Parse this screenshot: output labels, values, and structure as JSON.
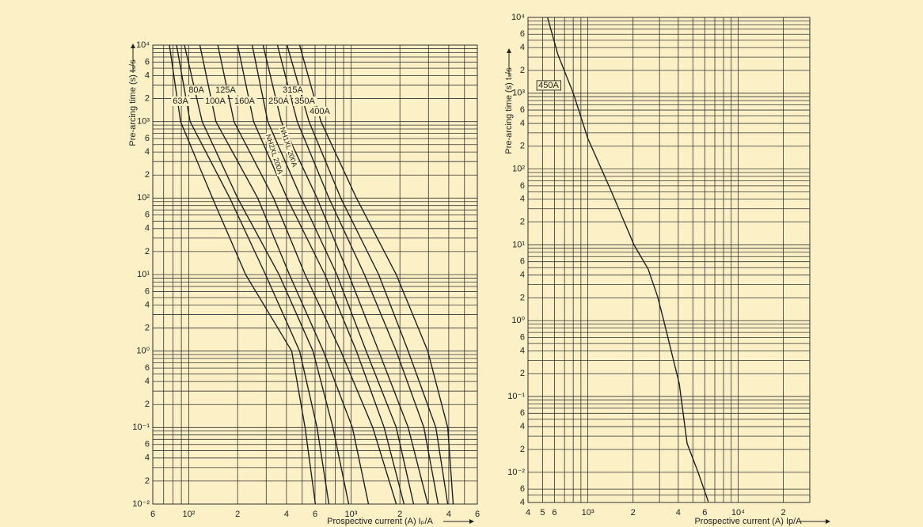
{
  "chart_data": [
    {
      "type": "line",
      "log_x": true,
      "log_y": true,
      "grid": true,
      "x_label": "Prospective current (A) Iₚ/A",
      "y_label": "Pre-arcing time (s) tₛ/s",
      "xlim": [
        60,
        6000
      ],
      "ylim": [
        0.01,
        10000
      ],
      "xticks": [
        {
          "value": 60,
          "label": "6"
        },
        {
          "value": 100,
          "label": "10²"
        },
        {
          "value": 200,
          "label": "2"
        },
        {
          "value": 400,
          "label": "4"
        },
        {
          "value": 600,
          "label": "6"
        },
        {
          "value": 1000,
          "label": "10³"
        },
        {
          "value": 2000,
          "label": "2"
        },
        {
          "value": 4000,
          "label": "4"
        },
        {
          "value": 6000,
          "label": "6"
        }
      ],
      "yticks": [
        {
          "value": 10000,
          "label": "10⁴"
        },
        {
          "value": 6000,
          "label": "6"
        },
        {
          "value": 4000,
          "label": "4"
        },
        {
          "value": 2000,
          "label": "2"
        },
        {
          "value": 1000,
          "label": "10³"
        },
        {
          "value": 600,
          "label": "6"
        },
        {
          "value": 400,
          "label": "4"
        },
        {
          "value": 200,
          "label": "2"
        },
        {
          "value": 100,
          "label": "10²"
        },
        {
          "value": 60,
          "label": "6"
        },
        {
          "value": 40,
          "label": "4"
        },
        {
          "value": 20,
          "label": "2"
        },
        {
          "value": 10,
          "label": "10¹"
        },
        6,
        4,
        2,
        {
          "value": 1,
          "label": "10⁰"
        },
        {
          "value": 0.6,
          "label": "6"
        },
        {
          "value": 0.4,
          "label": "4"
        },
        {
          "value": 0.2,
          "label": "2"
        },
        {
          "value": 0.1,
          "label": "10⁻¹"
        },
        {
          "value": 0.06,
          "label": "6"
        },
        {
          "value": 0.04,
          "label": "4"
        },
        {
          "value": 0.02,
          "label": "2"
        },
        {
          "value": 0.01,
          "label": "10⁻²"
        }
      ],
      "x_minor_ticks": [
        70,
        80,
        90,
        300,
        500,
        700,
        800,
        900,
        3000,
        5000
      ],
      "y_minor_ticks": [
        0.03,
        0.05,
        0.07,
        0.08,
        0.09,
        0.3,
        0.5,
        0.7,
        0.8,
        0.9,
        3,
        5,
        7,
        8,
        9,
        30,
        50,
        70,
        80,
        90,
        300,
        500,
        700,
        800,
        900,
        3000,
        5000,
        7000,
        8000,
        9000
      ],
      "series": [
        {
          "name": "63A",
          "color": "#222222",
          "x": [
            76,
            89,
            140,
            224,
            431,
            521,
            603
          ],
          "values": [
            10000,
            1000,
            100,
            10,
            1,
            0.1,
            0.01
          ]
        },
        {
          "name": "80A",
          "color": "#222222",
          "x": [
            84,
            102,
            179,
            297,
            482,
            617,
            730
          ],
          "values": [
            10000,
            1000,
            100,
            10,
            1,
            0.1,
            0.01
          ]
        },
        {
          "name": "100A",
          "color": "#222222",
          "x": [
            94,
            121,
            200,
            360,
            583,
            773,
            967
          ],
          "values": [
            10000,
            1000,
            100,
            10,
            1,
            0.1,
            0.01
          ]
        },
        {
          "name": "125A",
          "color": "#222222",
          "x": [
            117,
            147,
            266,
            417,
            675,
            1020,
            1280
          ],
          "values": [
            10000,
            1000,
            100,
            10,
            1,
            0.1,
            0.01
          ]
        },
        {
          "name": "160A",
          "color": "#222222",
          "x": [
            151,
            190,
            333,
            521,
            864,
            1360,
            1900
          ],
          "values": [
            10000,
            1000,
            100,
            10,
            1,
            0.1,
            0.01
          ]
        },
        {
          "name": "NH2XL 200A",
          "color": "#222222",
          "x": [
            200,
            251,
            403,
            690,
            1080,
            1600,
            2120
          ],
          "values": [
            10000,
            1000,
            100,
            10,
            1,
            0.1,
            0.01
          ]
        },
        {
          "name": "NH1XL 200A",
          "color": "#222222",
          "x": [
            246,
            307,
            493,
            817,
            1240,
            1900,
            2430
          ],
          "values": [
            10000,
            1000,
            100,
            10,
            1,
            0.1,
            0.01
          ]
        },
        {
          "name": "250A",
          "color": "#222222",
          "x": [
            287,
            372,
            617,
            967,
            1480,
            2250,
            2970
          ],
          "values": [
            10000,
            1000,
            100,
            10,
            1,
            0.1,
            0.01
          ]
        },
        {
          "name": "315A",
          "color": "#222222",
          "x": [
            352,
            466,
            730,
            1210,
            1900,
            2810,
            3440
          ],
          "values": [
            10000,
            1000,
            100,
            10,
            1,
            0.1,
            0.01
          ]
        },
        {
          "name": "350A",
          "color": "#222222",
          "x": [
            403,
            551,
            864,
            1480,
            2250,
            3330,
            3940
          ],
          "values": [
            10000,
            1000,
            100,
            10,
            1,
            0.1,
            0.01
          ]
        },
        {
          "name": "400A",
          "color": "#222222",
          "x": [
            482,
            653,
            1080,
            1900,
            2970,
            3940,
            4260
          ],
          "values": [
            10000,
            1000,
            100,
            10,
            1,
            0.1,
            0.01
          ]
        }
      ]
    },
    {
      "type": "line",
      "log_x": true,
      "log_y": true,
      "grid": true,
      "x_label": "Prospective current (A) Ip/A",
      "y_label": "Pre-arcing time (s) tₛ/s",
      "xlim": [
        400,
        30000
      ],
      "ylim": [
        0.004,
        10000
      ],
      "xticks": [
        {
          "value": 400,
          "label": "4"
        },
        {
          "value": 500,
          "label": "5"
        },
        {
          "value": 600,
          "label": "6"
        },
        {
          "value": 1000,
          "label": "10³"
        },
        {
          "value": 2000,
          "label": "2"
        },
        {
          "value": 4000,
          "label": "4"
        },
        {
          "value": 6000,
          "label": "6"
        },
        {
          "value": 10000,
          "label": "10⁴"
        },
        {
          "value": 20000,
          "label": "2"
        }
      ],
      "yticks": [
        {
          "value": 10000,
          "label": "10⁴"
        },
        {
          "value": 6000,
          "label": "6"
        },
        {
          "value": 4000,
          "label": "4"
        },
        {
          "value": 2000,
          "label": "2"
        },
        {
          "value": 1000,
          "label": "10³"
        },
        {
          "value": 600,
          "label": "6"
        },
        {
          "value": 400,
          "label": "4"
        },
        {
          "value": 200,
          "label": "2"
        },
        {
          "value": 100,
          "label": "10²"
        },
        {
          "value": 60,
          "label": "6"
        },
        {
          "value": 40,
          "label": "4"
        },
        {
          "value": 20,
          "label": "2"
        },
        {
          "value": 10,
          "label": "10¹"
        },
        6,
        4,
        2,
        {
          "value": 1,
          "label": "10⁰"
        },
        {
          "value": 0.6,
          "label": "6"
        },
        {
          "value": 0.4,
          "label": "4"
        },
        {
          "value": 0.2,
          "label": "2"
        },
        {
          "value": 0.1,
          "label": "10⁻¹"
        },
        {
          "value": 0.06,
          "label": "6"
        },
        {
          "value": 0.04,
          "label": "4"
        },
        {
          "value": 0.02,
          "label": "2"
        },
        {
          "value": 0.01,
          "label": "10⁻²"
        },
        {
          "value": 0.006,
          "label": "6"
        },
        {
          "value": 0.004,
          "label": "4"
        }
      ],
      "x_minor_ticks": [
        700,
        800,
        900,
        3000,
        5000,
        7000,
        8000,
        9000
      ],
      "y_minor_ticks": [
        0.005,
        0.03,
        0.05,
        0.07,
        0.08,
        0.09,
        0.3,
        0.5,
        0.7,
        0.8,
        0.9,
        3,
        5,
        7,
        8,
        9,
        30,
        50,
        70,
        80,
        90,
        300,
        500,
        700,
        800,
        900,
        3000,
        5000,
        7000,
        8000,
        9000
      ],
      "series": [
        {
          "name": "450A",
          "color": "#222222",
          "x": [
            540,
            630,
            800,
            1000,
            1420,
            2030,
            2520,
            2910,
            3200,
            4060,
            4580,
            5420,
            6340
          ],
          "values": [
            10000,
            3300,
            1000,
            253,
            53,
            10,
            4.8,
            2.1,
            1,
            0.147,
            0.024,
            0.01,
            0.0041
          ]
        }
      ]
    }
  ]
}
